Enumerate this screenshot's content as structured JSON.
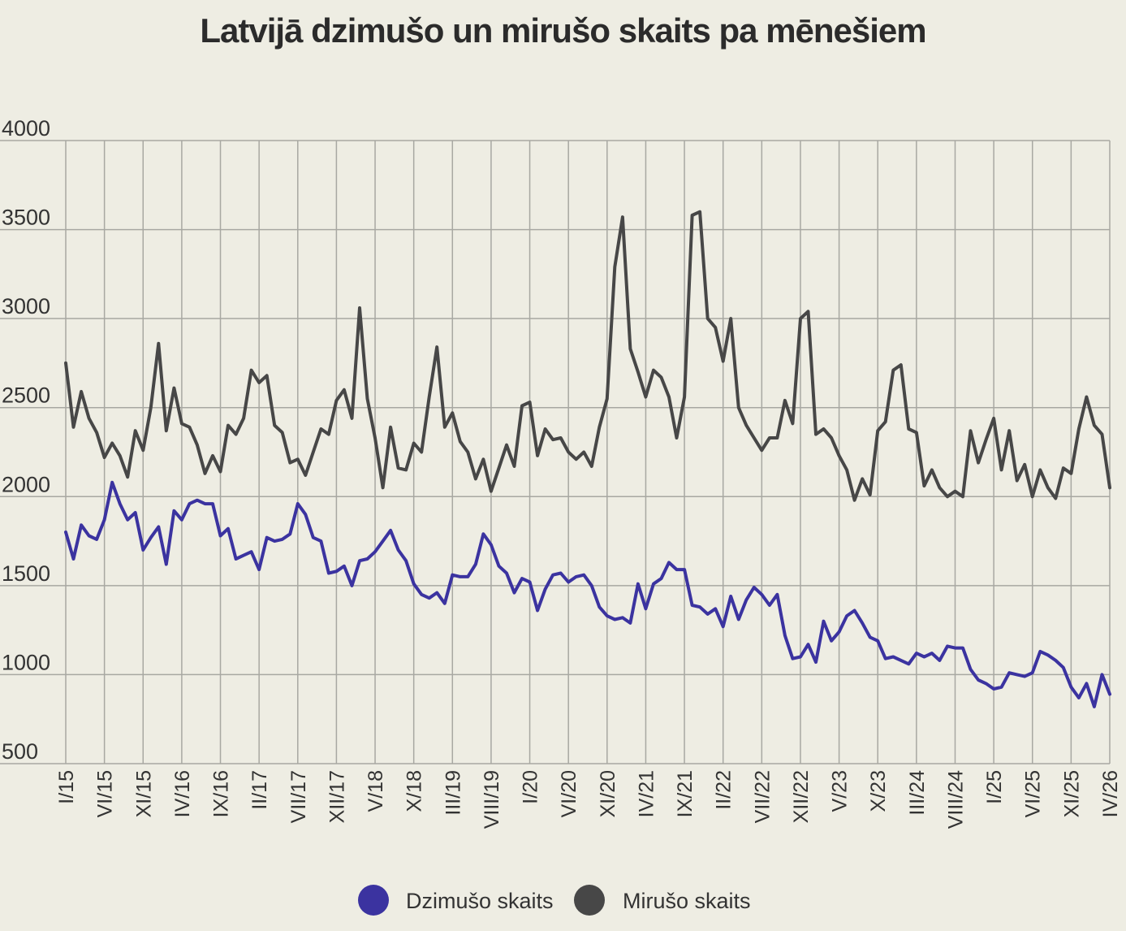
{
  "chart_data": {
    "type": "line",
    "title": "Latvijā dzimušo un mirušo skaits pa mēnešiem",
    "ylim": [
      500,
      4000
    ],
    "yticks": [
      500,
      1000,
      1500,
      2000,
      2500,
      3000,
      3500,
      4000
    ],
    "grid": true,
    "legend_position": "bottom-center",
    "x_start": "2015-01",
    "x_end": "2026-04",
    "x_tick_labels": [
      "I/15",
      "VI/15",
      "XI/15",
      "IV/16",
      "IX/16",
      "II/17",
      "VII/17",
      "XII/17",
      "V/18",
      "X/18",
      "III/19",
      "VIII/19",
      "I/20",
      "VI/20",
      "XI/20",
      "IV/21",
      "IX/21",
      "II/22",
      "VII/22",
      "XII/22",
      "V/23",
      "X/23",
      "III/24",
      "VIII/24",
      "I/25",
      "VI/25",
      "XI/25",
      "IV/26"
    ],
    "series": [
      {
        "name": "Dzimušo skaits",
        "color": "#3b33a0",
        "values": [
          1800,
          1650,
          1840,
          1780,
          1760,
          1870,
          2080,
          1960,
          1870,
          1910,
          1700,
          1770,
          1830,
          1620,
          1920,
          1870,
          1960,
          1980,
          1960,
          1960,
          1780,
          1820,
          1650,
          1670,
          1690,
          1590,
          1770,
          1750,
          1760,
          1790,
          1960,
          1900,
          1770,
          1750,
          1570,
          1580,
          1610,
          1500,
          1640,
          1650,
          1690,
          1750,
          1810,
          1700,
          1640,
          1510,
          1450,
          1430,
          1460,
          1400,
          1560,
          1550,
          1550,
          1620,
          1790,
          1730,
          1610,
          1570,
          1460,
          1540,
          1520,
          1360,
          1480,
          1560,
          1570,
          1520,
          1550,
          1560,
          1500,
          1380,
          1330,
          1310,
          1320,
          1290,
          1510,
          1370,
          1510,
          1540,
          1630,
          1590,
          1590,
          1390,
          1380,
          1340,
          1370,
          1270,
          1440,
          1310,
          1420,
          1490,
          1450,
          1390,
          1450,
          1220,
          1090,
          1100,
          1170,
          1070,
          1300,
          1190,
          1240,
          1330,
          1360,
          1290,
          1210,
          1190,
          1090,
          1100,
          1080,
          1060,
          1120,
          1100,
          1120,
          1080,
          1160,
          1150,
          1150,
          1030,
          970,
          950,
          920,
          930,
          1010,
          1000,
          990,
          1010,
          1130,
          1110,
          1080,
          1040,
          930,
          870,
          950,
          820,
          1000,
          890
        ]
      },
      {
        "name": "Mirušo skaits",
        "color": "#474747",
        "values": [
          2750,
          2390,
          2590,
          2440,
          2360,
          2220,
          2300,
          2230,
          2110,
          2370,
          2260,
          2500,
          2860,
          2370,
          2610,
          2410,
          2390,
          2290,
          2130,
          2230,
          2140,
          2400,
          2350,
          2440,
          2710,
          2640,
          2680,
          2400,
          2360,
          2190,
          2210,
          2120,
          2250,
          2380,
          2350,
          2540,
          2600,
          2440,
          3060,
          2550,
          2330,
          2050,
          2390,
          2160,
          2150,
          2300,
          2250,
          2560,
          2840,
          2390,
          2470,
          2310,
          2250,
          2100,
          2210,
          2030,
          2160,
          2290,
          2170,
          2510,
          2530,
          2230,
          2380,
          2320,
          2330,
          2250,
          2210,
          2250,
          2170,
          2390,
          2550,
          3290,
          3570,
          2830,
          2700,
          2560,
          2710,
          2670,
          2560,
          2330,
          2560,
          3580,
          3600,
          3000,
          2950,
          2760,
          3000,
          2500,
          2400,
          2330,
          2260,
          2330,
          2330,
          2540,
          2410,
          3000,
          3040,
          2350,
          2380,
          2330,
          2230,
          2150,
          1980,
          2100,
          2010,
          2370,
          2420,
          2710,
          2740,
          2380,
          2360,
          2060,
          2150,
          2050,
          2000,
          2030,
          2000,
          2370,
          2190,
          2320,
          2440,
          2150,
          2370,
          2090,
          2180,
          2000,
          2150,
          2050,
          1990,
          2160,
          2130,
          2380,
          2560,
          2400,
          2350,
          2050
        ]
      }
    ]
  }
}
